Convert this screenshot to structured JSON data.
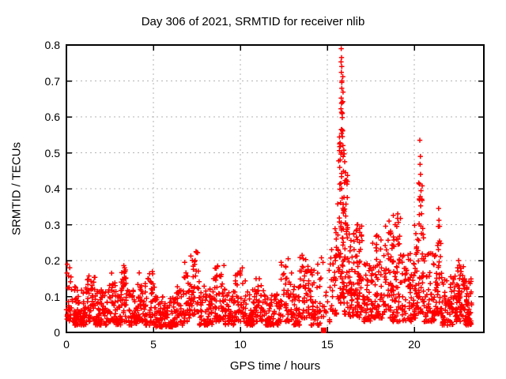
{
  "chart_data": {
    "type": "scatter",
    "title": "Day 306 of 2021, SRMTID for receiver nlib",
    "xlabel": "GPS time / hours",
    "ylabel": "SRMTID / TECUs",
    "xlim": [
      0,
      24
    ],
    "ylim": [
      0,
      0.8
    ],
    "xticks": {
      "values": [
        0,
        5,
        10,
        15,
        20
      ],
      "labels": [
        "0",
        "5",
        "10",
        "15",
        "20"
      ]
    },
    "yticks": {
      "values": [
        0,
        0.1,
        0.2,
        0.3,
        0.4,
        0.5,
        0.6,
        0.7,
        0.8
      ],
      "labels": [
        "0",
        "0.1",
        "0.2",
        "0.3",
        "0.4",
        "0.5",
        "0.6",
        "0.7",
        "0.8"
      ]
    },
    "grid": {
      "show": true,
      "x_at": [
        5,
        10,
        15,
        20
      ],
      "y_at": [
        0.1,
        0.2,
        0.3,
        0.4,
        0.5,
        0.6,
        0.7
      ],
      "color": "#b3b3b3",
      "dash": [
        2,
        4
      ]
    },
    "legend": "none",
    "axis_color": "#000000",
    "marker": {
      "shape": "plus",
      "size": 6.4,
      "color": "#ff0000",
      "stroke_width": 1.5
    },
    "seed": 306,
    "bands_format": [
      "x_start",
      "x_end",
      "count",
      "y_min",
      "y_max",
      "skew_exponent"
    ],
    "density_bands": [
      [
        0.0,
        0.35,
        30,
        0.03,
        0.19,
        1.4
      ],
      [
        0.35,
        1.2,
        85,
        0.02,
        0.13,
        1.7
      ],
      [
        1.2,
        1.65,
        40,
        0.03,
        0.16,
        1.6
      ],
      [
        1.65,
        2.4,
        70,
        0.02,
        0.12,
        1.7
      ],
      [
        2.4,
        2.85,
        40,
        0.03,
        0.17,
        1.6
      ],
      [
        2.85,
        3.15,
        28,
        0.02,
        0.12,
        1.7
      ],
      [
        3.15,
        3.55,
        40,
        0.03,
        0.19,
        1.6
      ],
      [
        3.55,
        4.05,
        45,
        0.02,
        0.12,
        1.7
      ],
      [
        4.05,
        4.55,
        45,
        0.03,
        0.17,
        1.6
      ],
      [
        4.55,
        5.15,
        50,
        0.02,
        0.17,
        1.7
      ],
      [
        5.15,
        6.2,
        85,
        0.015,
        0.1,
        1.7
      ],
      [
        6.2,
        6.75,
        45,
        0.02,
        0.13,
        1.7
      ],
      [
        6.75,
        7.15,
        35,
        0.03,
        0.17,
        1.6
      ],
      [
        7.15,
        7.65,
        40,
        0.04,
        0.23,
        1.6
      ],
      [
        7.65,
        8.45,
        65,
        0.02,
        0.13,
        1.7
      ],
      [
        8.45,
        9.1,
        55,
        0.03,
        0.19,
        1.6
      ],
      [
        9.1,
        9.7,
        50,
        0.02,
        0.12,
        1.7
      ],
      [
        9.7,
        10.3,
        45,
        0.03,
        0.18,
        1.6
      ],
      [
        10.3,
        10.85,
        45,
        0.02,
        0.12,
        1.7
      ],
      [
        10.85,
        11.35,
        40,
        0.03,
        0.15,
        1.6
      ],
      [
        11.35,
        12.3,
        75,
        0.02,
        0.11,
        1.7
      ],
      [
        12.3,
        12.95,
        50,
        0.03,
        0.2,
        1.6
      ],
      [
        12.95,
        13.4,
        40,
        0.02,
        0.13,
        1.7
      ],
      [
        13.4,
        13.95,
        45,
        0.04,
        0.215,
        1.5
      ],
      [
        13.95,
        14.6,
        55,
        0.02,
        0.185,
        1.7
      ],
      [
        14.6,
        15.25,
        22,
        0.02,
        0.21,
        1.9
      ],
      [
        15.25,
        15.6,
        28,
        0.05,
        0.3,
        1.5
      ],
      [
        15.6,
        15.78,
        35,
        0.08,
        0.55,
        1.3
      ],
      [
        15.78,
        15.92,
        40,
        0.1,
        0.72,
        1.2
      ],
      [
        15.92,
        16.18,
        45,
        0.05,
        0.48,
        1.4
      ],
      [
        16.18,
        16.55,
        45,
        0.04,
        0.28,
        1.5
      ],
      [
        16.55,
        17.0,
        60,
        0.04,
        0.3,
        1.6
      ],
      [
        17.0,
        17.6,
        55,
        0.03,
        0.22,
        1.7
      ],
      [
        17.6,
        18.25,
        60,
        0.04,
        0.27,
        1.6
      ],
      [
        18.25,
        18.75,
        50,
        0.04,
        0.3,
        1.5
      ],
      [
        18.75,
        19.25,
        55,
        0.03,
        0.33,
        1.6
      ],
      [
        19.25,
        19.95,
        60,
        0.03,
        0.22,
        1.6
      ],
      [
        19.95,
        20.25,
        40,
        0.04,
        0.3,
        1.5
      ],
      [
        20.25,
        20.55,
        42,
        0.05,
        0.42,
        1.4
      ],
      [
        20.55,
        21.2,
        60,
        0.03,
        0.22,
        1.6
      ],
      [
        21.2,
        21.6,
        45,
        0.05,
        0.3,
        1.4
      ],
      [
        21.6,
        22.4,
        70,
        0.02,
        0.16,
        1.7
      ],
      [
        22.4,
        22.85,
        55,
        0.03,
        0.2,
        1.6
      ],
      [
        22.85,
        23.3,
        60,
        0.02,
        0.15,
        1.6
      ]
    ],
    "highlight_points": [
      [
        15.8,
        0.79
      ],
      [
        15.82,
        0.765
      ],
      [
        15.79,
        0.753
      ],
      [
        15.83,
        0.74
      ],
      [
        15.81,
        0.724
      ],
      [
        15.84,
        0.7
      ],
      [
        15.8,
        0.652
      ],
      [
        15.85,
        0.64
      ],
      [
        15.82,
        0.613
      ],
      [
        15.86,
        0.598
      ],
      [
        15.83,
        0.565
      ],
      [
        15.87,
        0.545
      ],
      [
        15.9,
        0.52
      ],
      [
        15.95,
        0.507
      ],
      [
        15.97,
        0.497
      ],
      [
        16.0,
        0.475
      ],
      [
        16.05,
        0.445
      ],
      [
        16.1,
        0.424
      ],
      [
        16.13,
        0.413
      ],
      [
        20.32,
        0.535
      ],
      [
        20.35,
        0.49
      ],
      [
        20.33,
        0.468
      ],
      [
        20.36,
        0.44
      ],
      [
        20.3,
        0.413
      ],
      [
        20.34,
        0.378
      ],
      [
        20.37,
        0.352
      ],
      [
        21.4,
        0.345
      ],
      [
        21.42,
        0.312
      ],
      [
        21.38,
        0.295
      ],
      [
        18.55,
        0.31
      ],
      [
        18.9,
        0.3
      ],
      [
        19.05,
        0.33
      ],
      [
        16.75,
        0.3
      ],
      [
        17.85,
        0.27
      ],
      [
        12.75,
        0.205
      ],
      [
        13.55,
        0.215
      ],
      [
        13.62,
        0.205
      ],
      [
        7.45,
        0.225
      ],
      [
        7.4,
        0.2
      ],
      [
        6.8,
        0.195
      ],
      [
        22.55,
        0.2
      ],
      [
        14.45,
        0.19
      ],
      [
        0.05,
        0.19
      ],
      [
        3.3,
        0.186
      ],
      [
        8.7,
        0.185
      ],
      [
        2.6,
        0.165
      ],
      [
        10.0,
        0.17
      ]
    ],
    "special_markers": [
      {
        "shape": "filled-square",
        "x": 14.79,
        "y": 0.006,
        "size": 7,
        "color": "#ff0000"
      }
    ]
  }
}
